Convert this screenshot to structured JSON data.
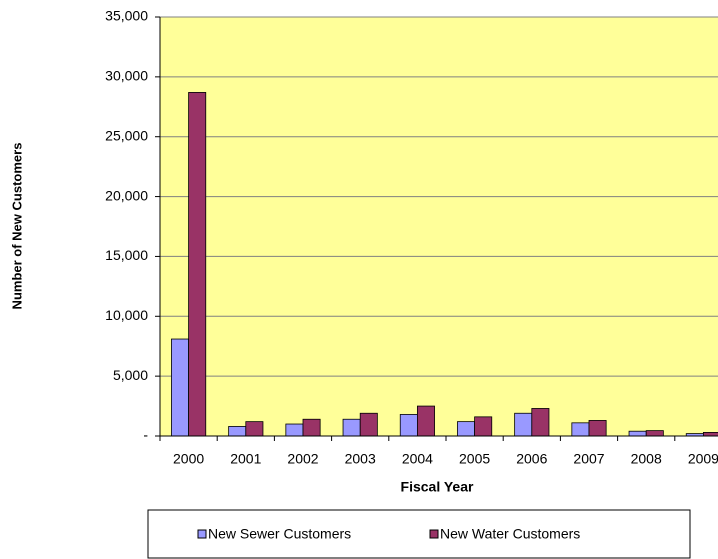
{
  "chart_data": {
    "type": "bar",
    "x_label": "Fiscal Year",
    "y_label": "Number of New Customers",
    "categories": [
      "2000",
      "2001",
      "2002",
      "2003",
      "2004",
      "2005",
      "2006",
      "2007",
      "2008",
      "2009"
    ],
    "series": [
      {
        "name": "New Sewer Customers",
        "color": "#9999ff",
        "values": [
          8100,
          800,
          1000,
          1400,
          1800,
          1200,
          1900,
          1100,
          400,
          200
        ]
      },
      {
        "name": "New Water Customers",
        "color": "#993366",
        "values": [
          28700,
          1200,
          1400,
          1900,
          2500,
          1600,
          2300,
          1300,
          450,
          300
        ]
      }
    ],
    "ylim": [
      0,
      35000
    ],
    "yticks": [
      {
        "value": 0,
        "label": "-"
      },
      {
        "value": 5000,
        "label": "5,000"
      },
      {
        "value": 10000,
        "label": "10,000"
      },
      {
        "value": 15000,
        "label": "15,000"
      },
      {
        "value": 20000,
        "label": "20,000"
      },
      {
        "value": 25000,
        "label": "25,000"
      },
      {
        "value": 30000,
        "label": "30,000"
      },
      {
        "value": 35000,
        "label": "35,000"
      }
    ],
    "grid": true,
    "plot_background": "#ffff99",
    "legend": "bottom"
  }
}
